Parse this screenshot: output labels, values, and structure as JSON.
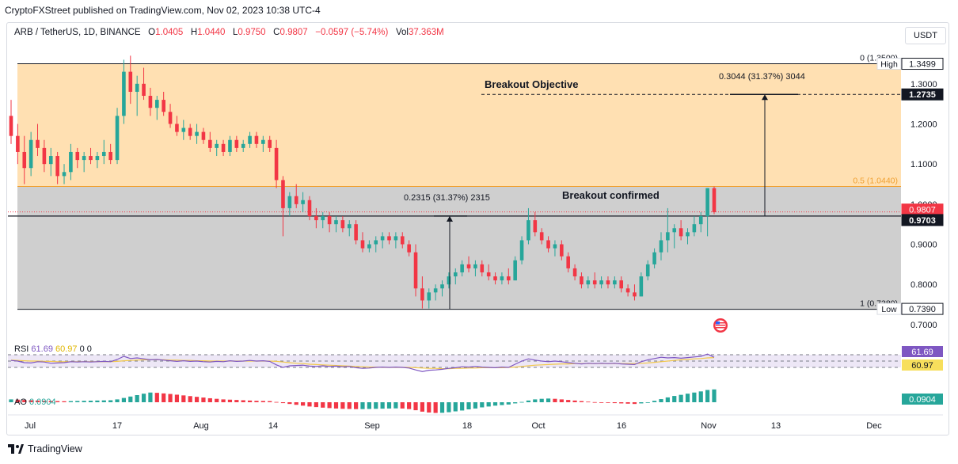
{
  "publisher_line": "CryptoFXStreet published on TradingView.com, Nov 02, 2023 10:38 UTC-4",
  "legend": {
    "symbol": "ARB / TetherUS, 1D, BINANCE",
    "open_label": "O",
    "open": "1.0405",
    "high_label": "H",
    "high": "1.0440",
    "low_label": "L",
    "low": "0.9750",
    "close_label": "C",
    "close": "0.9807",
    "change": "−0.0597 (−5.74%)",
    "vol_label": "Vol",
    "vol": "37.363M"
  },
  "currency_button": "USDT",
  "footer_brand": "TradingView",
  "colors": {
    "up": "#26a69a",
    "down": "#f23645",
    "fib_top_zone": "#ffe0b2",
    "fib_bottom_zone": "#cfcfcf",
    "rsi": "#7e57c2",
    "rsi_ma": "#f2c94c"
  },
  "chart_data": [
    {
      "type": "candlestick",
      "x_axis": {
        "tick_labels": [
          "Jul",
          "17",
          "Aug",
          "14",
          "Sep",
          "18",
          "Oct",
          "16",
          "Nov",
          "13",
          "Dec"
        ]
      },
      "y_axis": {
        "range": [
          0.68,
          1.42
        ],
        "tick_labels": [
          "1.3000",
          "1.2000",
          "1.1000",
          "1.0000",
          "0.9000",
          "0.8000",
          "0.7000"
        ]
      },
      "price_tags": [
        {
          "label": "High",
          "value": "1.3499"
        },
        {
          "label": "",
          "value": "1.2735"
        },
        {
          "label": "",
          "value": "0.9807"
        },
        {
          "label": "",
          "value": "0.9703"
        },
        {
          "label": "Low",
          "value": "0.7390"
        }
      ],
      "fib_levels": [
        {
          "label": "0 (1.3500)",
          "value": 1.35
        },
        {
          "label": "0.5 (1.0440)",
          "value": 1.044
        },
        {
          "label": "1 (0.7380)",
          "value": 0.738
        }
      ],
      "annotations": {
        "breakout_objective": "Breakout Objective",
        "breakout_confirmed": "Breakout confirmed",
        "measure_left": "0.2315 (31.37%) 2315",
        "measure_right": "0.3044 (31.37%) 3044"
      },
      "candles": [
        [
          1.22,
          1.26,
          1.15,
          1.17
        ],
        [
          1.17,
          1.2,
          1.1,
          1.13
        ],
        [
          1.13,
          1.17,
          1.05,
          1.09
        ],
        [
          1.09,
          1.18,
          1.07,
          1.16
        ],
        [
          1.16,
          1.2,
          1.12,
          1.14
        ],
        [
          1.14,
          1.16,
          1.08,
          1.1
        ],
        [
          1.1,
          1.14,
          1.07,
          1.12
        ],
        [
          1.12,
          1.13,
          1.05,
          1.07
        ],
        [
          1.07,
          1.1,
          1.05,
          1.08
        ],
        [
          1.08,
          1.15,
          1.06,
          1.13
        ],
        [
          1.13,
          1.14,
          1.09,
          1.11
        ],
        [
          1.11,
          1.13,
          1.08,
          1.12
        ],
        [
          1.12,
          1.14,
          1.1,
          1.11
        ],
        [
          1.11,
          1.13,
          1.09,
          1.12
        ],
        [
          1.12,
          1.16,
          1.1,
          1.13
        ],
        [
          1.13,
          1.15,
          1.1,
          1.11
        ],
        [
          1.11,
          1.24,
          1.1,
          1.22
        ],
        [
          1.22,
          1.36,
          1.2,
          1.33
        ],
        [
          1.33,
          1.37,
          1.25,
          1.28
        ],
        [
          1.28,
          1.32,
          1.22,
          1.3
        ],
        [
          1.3,
          1.34,
          1.26,
          1.27
        ],
        [
          1.27,
          1.29,
          1.22,
          1.24
        ],
        [
          1.24,
          1.27,
          1.21,
          1.26
        ],
        [
          1.26,
          1.28,
          1.22,
          1.23
        ],
        [
          1.23,
          1.25,
          1.19,
          1.2
        ],
        [
          1.2,
          1.22,
          1.17,
          1.18
        ],
        [
          1.18,
          1.21,
          1.16,
          1.19
        ],
        [
          1.19,
          1.2,
          1.16,
          1.17
        ],
        [
          1.17,
          1.2,
          1.15,
          1.18
        ],
        [
          1.18,
          1.19,
          1.15,
          1.16
        ],
        [
          1.16,
          1.18,
          1.13,
          1.14
        ],
        [
          1.14,
          1.16,
          1.12,
          1.15
        ],
        [
          1.15,
          1.16,
          1.12,
          1.13
        ],
        [
          1.13,
          1.17,
          1.12,
          1.16
        ],
        [
          1.16,
          1.17,
          1.13,
          1.14
        ],
        [
          1.14,
          1.16,
          1.13,
          1.15
        ],
        [
          1.15,
          1.18,
          1.14,
          1.17
        ],
        [
          1.17,
          1.18,
          1.14,
          1.15
        ],
        [
          1.15,
          1.17,
          1.13,
          1.16
        ],
        [
          1.16,
          1.17,
          1.13,
          1.14
        ],
        [
          1.14,
          1.16,
          1.04,
          1.06
        ],
        [
          1.06,
          1.07,
          0.92,
          0.99
        ],
        [
          0.99,
          1.03,
          0.97,
          1.02
        ],
        [
          1.02,
          1.05,
          0.99,
          1.0
        ],
        [
          1.0,
          1.03,
          0.98,
          1.01
        ],
        [
          1.01,
          1.02,
          0.96,
          0.97
        ],
        [
          0.97,
          0.99,
          0.94,
          0.96
        ],
        [
          0.96,
          0.98,
          0.94,
          0.97
        ],
        [
          0.97,
          0.98,
          0.93,
          0.95
        ],
        [
          0.95,
          0.97,
          0.93,
          0.96
        ],
        [
          0.96,
          0.97,
          0.93,
          0.94
        ],
        [
          0.94,
          0.96,
          0.92,
          0.95
        ],
        [
          0.95,
          0.96,
          0.9,
          0.91
        ],
        [
          0.91,
          0.93,
          0.88,
          0.89
        ],
        [
          0.89,
          0.91,
          0.88,
          0.9
        ],
        [
          0.9,
          0.92,
          0.88,
          0.91
        ],
        [
          0.91,
          0.93,
          0.89,
          0.92
        ],
        [
          0.92,
          0.93,
          0.9,
          0.91
        ],
        [
          0.91,
          0.93,
          0.89,
          0.92
        ],
        [
          0.92,
          0.93,
          0.89,
          0.9
        ],
        [
          0.9,
          0.91,
          0.87,
          0.88
        ],
        [
          0.88,
          0.9,
          0.77,
          0.79
        ],
        [
          0.79,
          0.82,
          0.74,
          0.76
        ],
        [
          0.76,
          0.79,
          0.74,
          0.78
        ],
        [
          0.78,
          0.8,
          0.76,
          0.79
        ],
        [
          0.79,
          0.81,
          0.77,
          0.8
        ],
        [
          0.8,
          0.83,
          0.79,
          0.82
        ],
        [
          0.82,
          0.84,
          0.8,
          0.83
        ],
        [
          0.83,
          0.86,
          0.82,
          0.85
        ],
        [
          0.85,
          0.87,
          0.83,
          0.84
        ],
        [
          0.84,
          0.86,
          0.82,
          0.85
        ],
        [
          0.85,
          0.86,
          0.82,
          0.83
        ],
        [
          0.83,
          0.85,
          0.81,
          0.82
        ],
        [
          0.82,
          0.83,
          0.8,
          0.81
        ],
        [
          0.81,
          0.83,
          0.8,
          0.82
        ],
        [
          0.82,
          0.84,
          0.8,
          0.81
        ],
        [
          0.81,
          0.87,
          0.81,
          0.86
        ],
        [
          0.86,
          0.92,
          0.85,
          0.91
        ],
        [
          0.91,
          0.99,
          0.9,
          0.96
        ],
        [
          0.96,
          0.98,
          0.92,
          0.93
        ],
        [
          0.93,
          0.94,
          0.9,
          0.91
        ],
        [
          0.91,
          0.92,
          0.88,
          0.89
        ],
        [
          0.89,
          0.91,
          0.87,
          0.9
        ],
        [
          0.9,
          0.91,
          0.86,
          0.87
        ],
        [
          0.87,
          0.88,
          0.83,
          0.84
        ],
        [
          0.84,
          0.85,
          0.81,
          0.82
        ],
        [
          0.82,
          0.83,
          0.79,
          0.8
        ],
        [
          0.8,
          0.82,
          0.79,
          0.81
        ],
        [
          0.81,
          0.83,
          0.79,
          0.8
        ],
        [
          0.8,
          0.82,
          0.79,
          0.81
        ],
        [
          0.81,
          0.82,
          0.79,
          0.8
        ],
        [
          0.8,
          0.82,
          0.79,
          0.81
        ],
        [
          0.81,
          0.82,
          0.78,
          0.79
        ],
        [
          0.79,
          0.8,
          0.77,
          0.78
        ],
        [
          0.78,
          0.8,
          0.76,
          0.77
        ],
        [
          0.77,
          0.83,
          0.77,
          0.82
        ],
        [
          0.82,
          0.86,
          0.81,
          0.85
        ],
        [
          0.85,
          0.89,
          0.84,
          0.88
        ],
        [
          0.88,
          0.93,
          0.86,
          0.91
        ],
        [
          0.91,
          0.99,
          0.88,
          0.93
        ],
        [
          0.93,
          0.95,
          0.89,
          0.94
        ],
        [
          0.94,
          0.96,
          0.91,
          0.92
        ],
        [
          0.92,
          0.94,
          0.9,
          0.93
        ],
        [
          0.93,
          0.97,
          0.92,
          0.95
        ],
        [
          0.95,
          0.98,
          0.93,
          0.97
        ],
        [
          0.97,
          1.04,
          0.92,
          1.04
        ],
        [
          1.04,
          1.044,
          0.975,
          0.98
        ]
      ]
    },
    {
      "type": "line",
      "title": "RSI",
      "legend_values": [
        "61.69",
        "60.97",
        "0",
        "0"
      ],
      "y_axis": {
        "range": [
          0,
          100
        ]
      },
      "tags": [
        "61.69",
        "60.97"
      ],
      "series": [
        {
          "values": [
            52,
            50,
            45,
            44,
            48,
            47,
            43,
            44,
            45,
            48,
            47,
            48,
            47,
            48,
            49,
            48,
            55,
            65,
            58,
            60,
            57,
            54,
            55,
            53,
            51,
            49,
            51,
            49,
            50,
            48,
            47,
            49,
            48,
            51,
            49,
            50,
            52,
            50,
            51,
            49,
            38,
            30,
            35,
            36,
            37,
            34,
            33,
            35,
            33,
            34,
            32,
            33,
            29,
            27,
            28,
            30,
            31,
            30,
            31,
            30,
            28,
            22,
            17,
            21,
            22,
            24,
            27,
            29,
            32,
            31,
            33,
            31,
            30,
            29,
            31,
            30,
            40,
            50,
            57,
            53,
            50,
            48,
            50,
            48,
            45,
            43,
            41,
            43,
            42,
            43,
            42,
            43,
            41,
            40,
            39,
            48,
            54,
            58,
            62,
            60,
            61,
            59,
            61,
            63,
            65,
            72,
            62
          ]
        },
        {
          "values": [
            53,
            52,
            51,
            50,
            50,
            49,
            49,
            48,
            48,
            48,
            48,
            48,
            48,
            48,
            48,
            48,
            49,
            51,
            52,
            53,
            54,
            54,
            54,
            54,
            53,
            53,
            52,
            52,
            51,
            51,
            50,
            50,
            50,
            50,
            50,
            50,
            50,
            50,
            50,
            50,
            49,
            47,
            45,
            43,
            42,
            40,
            39,
            38,
            37,
            36,
            35,
            34,
            33,
            32,
            31,
            31,
            30,
            30,
            30,
            30,
            30,
            29,
            28,
            27,
            27,
            26,
            26,
            27,
            27,
            28,
            28,
            29,
            29,
            29,
            29,
            30,
            31,
            33,
            35,
            37,
            38,
            39,
            40,
            41,
            41,
            42,
            42,
            42,
            42,
            42,
            42,
            42,
            42,
            42,
            42,
            43,
            44,
            46,
            48,
            50,
            52,
            54,
            55,
            57,
            58,
            60,
            61
          ]
        }
      ]
    },
    {
      "type": "bar",
      "title": "AO",
      "legend_values": [
        "0.0904"
      ],
      "tags": [
        "0.0904"
      ],
      "values": [
        0.02,
        0.018,
        0.016,
        0.014,
        0.012,
        0.01,
        0.009,
        0.008,
        0.007,
        0.008,
        0.009,
        0.01,
        0.011,
        0.012,
        0.013,
        0.014,
        0.02,
        0.03,
        0.04,
        0.05,
        0.06,
        0.068,
        0.066,
        0.062,
        0.058,
        0.053,
        0.048,
        0.043,
        0.038,
        0.033,
        0.028,
        0.024,
        0.02,
        0.018,
        0.016,
        0.014,
        0.012,
        0.01,
        0.009,
        0.008,
        0.002,
        -0.006,
        -0.012,
        -0.018,
        -0.024,
        -0.03,
        -0.034,
        -0.038,
        -0.041,
        -0.044,
        -0.046,
        -0.047,
        -0.048,
        -0.048,
        -0.047,
        -0.046,
        -0.045,
        -0.044,
        -0.043,
        -0.044,
        -0.048,
        -0.056,
        -0.066,
        -0.072,
        -0.075,
        -0.074,
        -0.07,
        -0.064,
        -0.058,
        -0.05,
        -0.044,
        -0.036,
        -0.03,
        -0.024,
        -0.02,
        -0.016,
        -0.008,
        0.002,
        0.012,
        0.02,
        0.024,
        0.026,
        0.024,
        0.02,
        0.016,
        0.012,
        0.008,
        0.004,
        0.001,
        -0.002,
        -0.004,
        -0.006,
        -0.008,
        -0.01,
        -0.012,
        -0.008,
        0.0,
        0.01,
        0.022,
        0.034,
        0.044,
        0.052,
        0.06,
        0.068,
        0.076,
        0.086,
        0.09
      ]
    }
  ]
}
